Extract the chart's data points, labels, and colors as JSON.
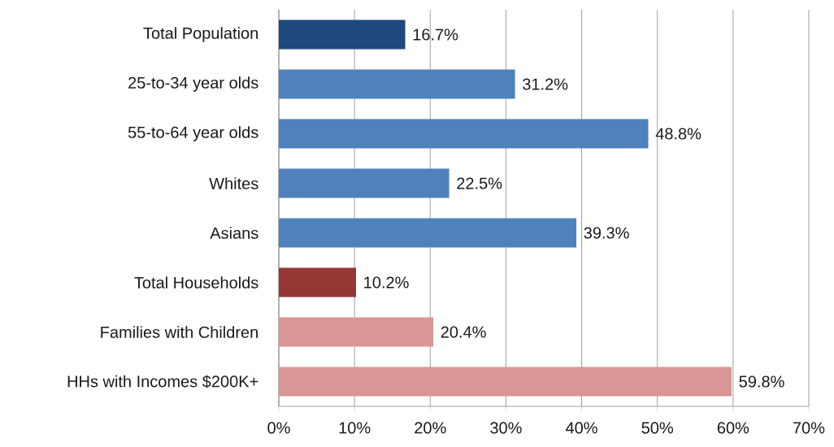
{
  "chart_data": {
    "type": "bar",
    "orientation": "horizontal",
    "categories": [
      "Total Population",
      "25-to-34 year olds",
      "55-to-64 year olds",
      "Whites",
      "Asians",
      "Total Households",
      "Families with Children",
      "HHs with Incomes $200K+"
    ],
    "values": [
      16.7,
      31.2,
      48.8,
      22.5,
      39.3,
      10.2,
      20.4,
      59.8
    ],
    "colors": [
      "#1f497d",
      "#4f81bd",
      "#4f81bd",
      "#4f81bd",
      "#4f81bd",
      "#953735",
      "#d99694",
      "#d99694"
    ],
    "value_labels": [
      "16.7%",
      "31.2%",
      "48.8%",
      "22.5%",
      "39.3%",
      "10.2%",
      "20.4%",
      "59.8%"
    ],
    "xlim": [
      0,
      70
    ],
    "xticks": [
      {
        "value": 0,
        "label": "0%"
      },
      {
        "value": 10,
        "label": "10%"
      },
      {
        "value": 20,
        "label": "20%"
      },
      {
        "value": 30,
        "label": "30%"
      },
      {
        "value": 40,
        "label": "40%"
      },
      {
        "value": 50,
        "label": "50%"
      },
      {
        "value": 60,
        "label": "60%"
      },
      {
        "value": 70,
        "label": "70%"
      }
    ],
    "grid": "x"
  }
}
